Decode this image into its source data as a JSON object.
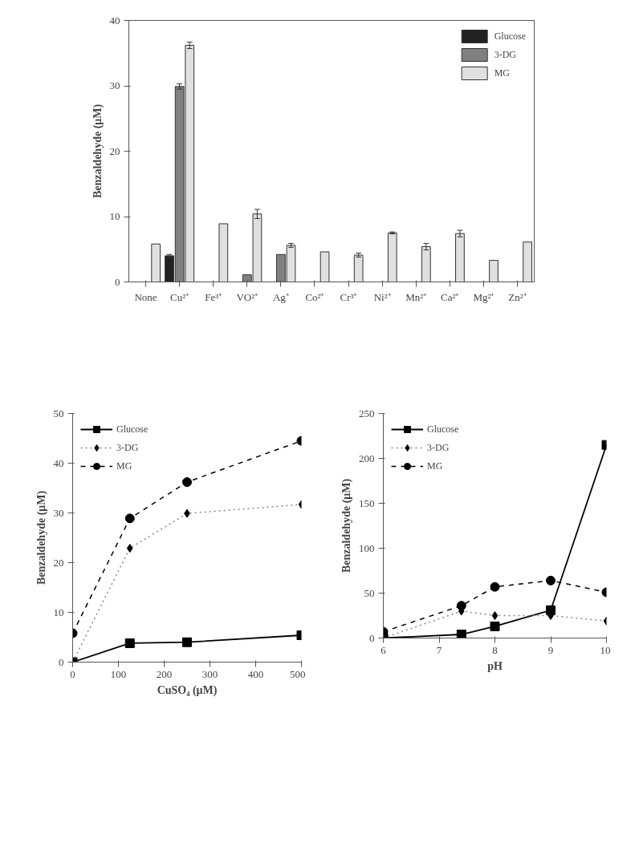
{
  "chart_data": [
    {
      "type": "bar",
      "ylabel": "Benzaldehyde (μM)",
      "categories": [
        "None",
        "Cu²⁺",
        "Fe³⁺",
        "VO²⁺",
        "Ag⁺",
        "Co²⁺",
        "Cr³⁺",
        "Ni²⁺",
        "Mn²⁺",
        "Ca²⁺",
        "Mg²⁺",
        "Zn²⁺"
      ],
      "ylim": [
        0,
        40
      ],
      "yticks": [
        0,
        10,
        20,
        30,
        40
      ],
      "legend": "top right",
      "series": [
        {
          "name": "Glucose",
          "color": "#222222",
          "values": [
            null,
            4.0,
            null,
            null,
            null,
            null,
            null,
            null,
            null,
            null,
            null,
            null
          ],
          "errors": [
            null,
            0.2,
            null,
            null,
            null,
            null,
            null,
            null,
            null,
            null,
            null,
            null
          ]
        },
        {
          "name": "3-DG",
          "color": "#808080",
          "values": [
            null,
            29.9,
            null,
            1.1,
            4.2,
            null,
            null,
            null,
            null,
            null,
            null,
            null
          ],
          "errors": [
            null,
            0.4,
            null,
            null,
            null,
            null,
            null,
            null,
            null,
            null,
            null,
            null
          ]
        },
        {
          "name": "MG",
          "color": "#e0e0e0",
          "values": [
            5.8,
            36.2,
            8.9,
            10.4,
            5.6,
            4.6,
            4.1,
            7.5,
            5.4,
            7.4,
            3.3,
            6.1
          ],
          "errors": [
            null,
            0.5,
            null,
            0.7,
            0.3,
            null,
            0.3,
            0.15,
            0.5,
            0.5,
            null,
            null
          ]
        }
      ]
    },
    {
      "type": "line",
      "xlabel": "CuSO₄ (μM)",
      "ylabel": "Benzaldehyde (μM)",
      "x": [
        0,
        125,
        250,
        500
      ],
      "xlim": [
        0,
        500
      ],
      "xticks": [
        0,
        100,
        200,
        300,
        400,
        500
      ],
      "ylim": [
        0,
        50
      ],
      "yticks": [
        0,
        10,
        20,
        30,
        40,
        50
      ],
      "legend": "top left",
      "series": [
        {
          "name": "Glucose",
          "color": "#000000",
          "marker": "square",
          "line_style": "solid",
          "values": [
            0,
            3.8,
            4.0,
            5.4
          ]
        },
        {
          "name": "3-DG",
          "color": "#888888",
          "marker": "diamond",
          "line_style": "dotted",
          "values": [
            0,
            22.9,
            29.9,
            31.7
          ]
        },
        {
          "name": "MG",
          "color": "#000000",
          "marker": "circle",
          "line_style": "dashed",
          "values": [
            5.8,
            28.9,
            36.2,
            44.5
          ]
        }
      ]
    },
    {
      "type": "line",
      "xlabel": "pH",
      "ylabel": "Benzaldehyde (μM)",
      "x": [
        6,
        7.4,
        8,
        9,
        10
      ],
      "xlim": [
        6,
        10
      ],
      "xticks": [
        6,
        7,
        8,
        9,
        10
      ],
      "ylim": [
        0,
        250
      ],
      "yticks": [
        0,
        50,
        100,
        150,
        200,
        250
      ],
      "legend": "top left",
      "series": [
        {
          "name": "Glucose",
          "color": "#000000",
          "marker": "square",
          "line_style": "solid",
          "values": [
            0,
            4,
            13,
            31,
            215
          ]
        },
        {
          "name": "3-DG",
          "color": "#888888",
          "marker": "diamond",
          "line_style": "dotted",
          "values": [
            0,
            30,
            25,
            25,
            19
          ]
        },
        {
          "name": "MG",
          "color": "#000000",
          "marker": "circle",
          "line_style": "dashed",
          "values": [
            7,
            36,
            57,
            64,
            51
          ]
        }
      ]
    }
  ]
}
